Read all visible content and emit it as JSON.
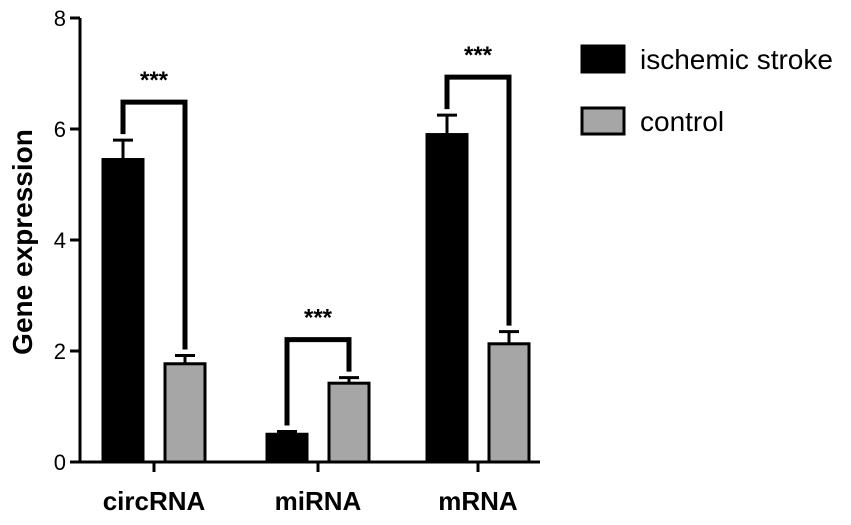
{
  "chart_data": {
    "type": "bar",
    "title": "",
    "xlabel": "",
    "ylabel": "Gene expression",
    "ylim": [
      0,
      8
    ],
    "yticks": [
      0,
      2,
      4,
      6,
      8
    ],
    "categories": [
      "circRNA",
      "miRNA",
      "mRNA"
    ],
    "series": [
      {
        "name": "ischemic stroke",
        "color": "#000000",
        "values": [
          5.45,
          0.5,
          5.9
        ],
        "errors": [
          0.35,
          0.05,
          0.35
        ]
      },
      {
        "name": "control",
        "color": "#a6a6a6",
        "values": [
          1.77,
          1.42,
          2.13
        ],
        "errors": [
          0.15,
          0.1,
          0.22
        ]
      }
    ],
    "significance": [
      "***",
      "***",
      "***"
    ],
    "legend_position": "top-right",
    "grid": false
  }
}
